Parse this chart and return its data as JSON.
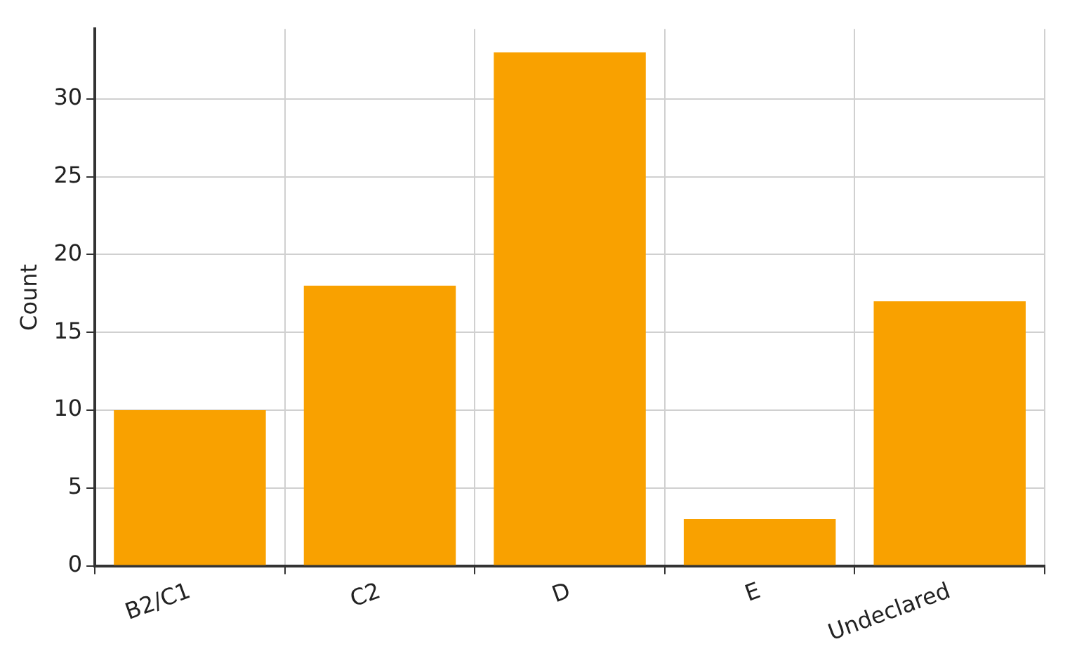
{
  "chart_data": {
    "type": "bar",
    "ylabel": "Count",
    "categories": [
      "B2/C1",
      "C2",
      "D",
      "E",
      "Undeclared"
    ],
    "values": [
      10,
      18,
      33,
      3,
      17
    ],
    "color": "#f9a100",
    "ylim": [
      0,
      34.5
    ],
    "yticks": [
      0,
      5,
      10,
      15,
      20,
      25,
      30
    ],
    "grid": true,
    "legend": false
  }
}
